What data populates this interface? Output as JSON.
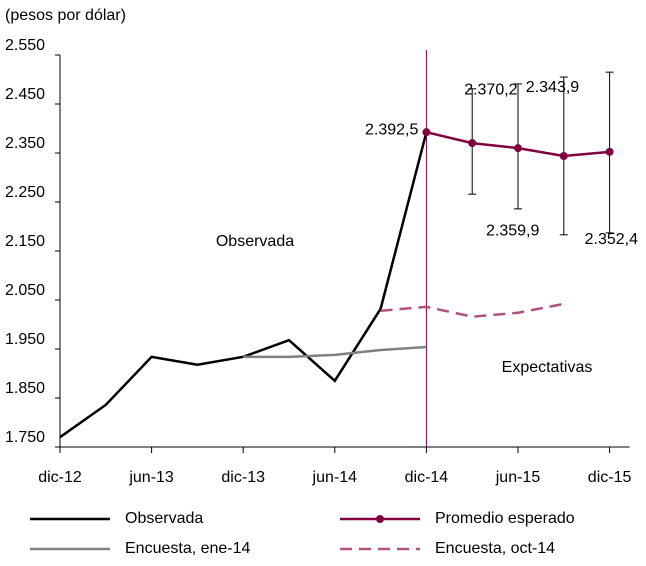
{
  "chart_data": {
    "type": "line",
    "y_label": "(pesos por dólar)",
    "categories": [
      "dic-12",
      null,
      "jun-13",
      null,
      "dic-13",
      null,
      "jun-14",
      null,
      "dic-14",
      null,
      "jun-15",
      null,
      "dic-15"
    ],
    "ylim": [
      1750,
      2550
    ],
    "yticks": [
      {
        "value": 1750,
        "label": "1.750"
      },
      {
        "value": 1850,
        "label": "1.850"
      },
      {
        "value": 1950,
        "label": "1.950"
      },
      {
        "value": 2050,
        "label": "2.050"
      },
      {
        "value": 2150,
        "label": "2.150"
      },
      {
        "value": 2250,
        "label": "2.250"
      },
      {
        "value": 2350,
        "label": "2.350"
      },
      {
        "value": 2450,
        "label": "2.450"
      },
      {
        "value": 2550,
        "label": "2.550"
      }
    ],
    "annotations": [
      "Observada",
      "Expectativas"
    ],
    "series": [
      {
        "name": "Observada",
        "color": "#000000",
        "values": [
          1770,
          1836,
          1934,
          1918,
          1934,
          1968,
          1885,
          2032,
          2392.5,
          null,
          null,
          null,
          null
        ]
      },
      {
        "name": "Promedio esperado",
        "color": "#800040",
        "markers": true,
        "values": [
          null,
          null,
          null,
          null,
          null,
          null,
          null,
          null,
          2392.5,
          2370.2,
          2359.9,
          2343.9,
          2352.4
        ],
        "value_labels": [
          null,
          null,
          null,
          null,
          null,
          null,
          null,
          null,
          "2.392,5",
          "2.370,2",
          "2.359,9",
          "2.343,9",
          "2.352,4"
        ],
        "low": [
          null,
          null,
          null,
          null,
          null,
          null,
          null,
          null,
          null,
          2266,
          2236,
          2183,
          2187
        ],
        "high": [
          null,
          null,
          null,
          null,
          null,
          null,
          null,
          null,
          null,
          2481,
          2491,
          2505,
          2515
        ]
      },
      {
        "name": "Encuesta, ene-14",
        "color": "#808080",
        "values": [
          null,
          null,
          null,
          null,
          1934,
          1934,
          1938,
          1948,
          1954,
          null,
          null,
          null,
          null
        ]
      },
      {
        "name": "Encuesta, oct-14",
        "color": "#b0527d",
        "dashed": true,
        "values": [
          null,
          null,
          null,
          null,
          null,
          null,
          null,
          2028,
          2036,
          2016,
          2024,
          2042,
          null
        ]
      }
    ]
  }
}
